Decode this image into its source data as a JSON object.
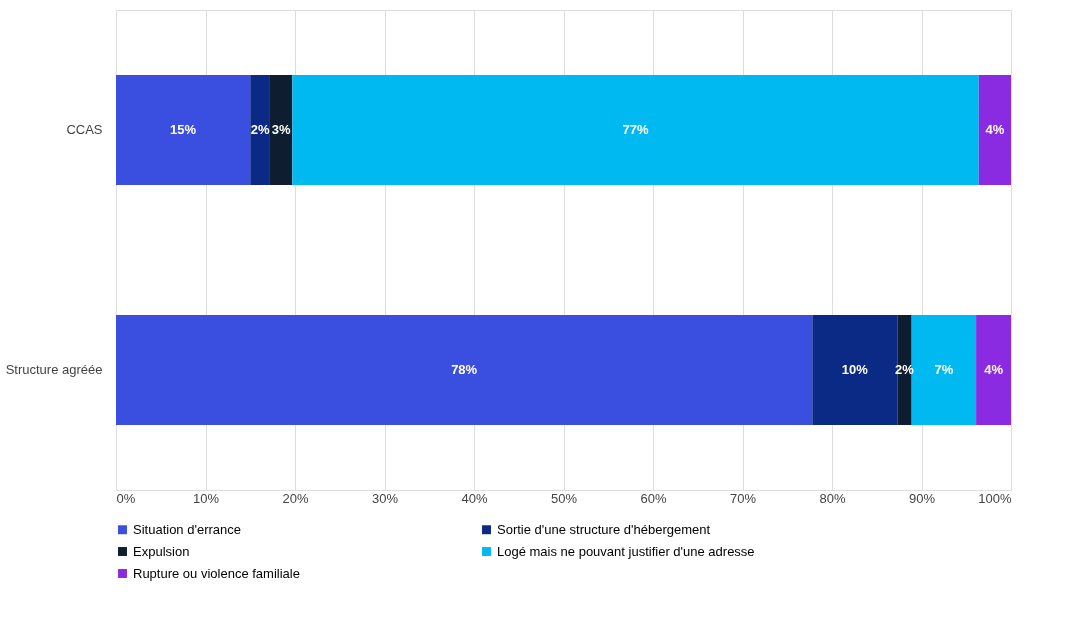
{
  "chart_data": {
    "type": "bar",
    "orientation": "horizontal",
    "stacked": true,
    "categories": [
      "CCAS",
      "Structure agréée"
    ],
    "series": [
      {
        "name": "Situation d'errance",
        "color": "#3a4fe0",
        "values": [
          15.0,
          77.8
        ],
        "value_labels": [
          "15%",
          "78%"
        ]
      },
      {
        "name": "Sortie d'une structure d'hébergement",
        "color": "#0b2a86",
        "values": [
          2.2,
          9.5
        ],
        "value_labels": [
          "2%",
          "10%"
        ]
      },
      {
        "name": "Expulsion",
        "color": "#0e1e30",
        "values": [
          2.5,
          1.6
        ],
        "value_labels": [
          "3%",
          "2%"
        ]
      },
      {
        "name": "Logé mais ne pouvant justifier d'une adresse",
        "color": "#00b9f1",
        "values": [
          76.7,
          7.2
        ],
        "value_labels": [
          "77%",
          "7%"
        ]
      },
      {
        "name": "Rupture ou violence familiale",
        "color": "#8a2be2",
        "values": [
          3.6,
          3.9
        ],
        "value_labels": [
          "4%",
          "4%"
        ]
      }
    ],
    "xlim": [
      0,
      100
    ],
    "xticks": [
      {
        "value": 0,
        "label": "0%"
      },
      {
        "value": 10,
        "label": "10%"
      },
      {
        "value": 20,
        "label": "20%"
      },
      {
        "value": 30,
        "label": "30%"
      },
      {
        "value": 40,
        "label": "40%"
      },
      {
        "value": 50,
        "label": "50%"
      },
      {
        "value": 60,
        "label": "60%"
      },
      {
        "value": 70,
        "label": "70%"
      },
      {
        "value": 80,
        "label": "80%"
      },
      {
        "value": 90,
        "label": "90%"
      },
      {
        "value": 100,
        "label": "100%"
      }
    ],
    "grid": "x",
    "legend": "bottom"
  }
}
